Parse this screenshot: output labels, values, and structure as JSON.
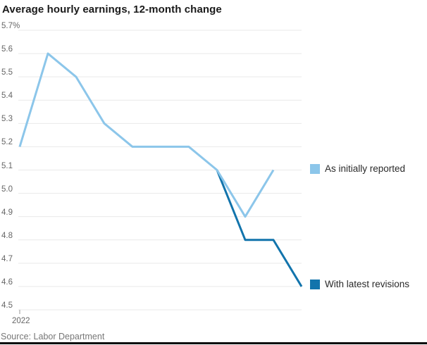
{
  "chart_data": {
    "type": "line",
    "title": "Average hourly earnings, 12-month change",
    "xlabel": "",
    "ylabel": "",
    "ylim": [
      4.5,
      5.7
    ],
    "grid": true,
    "grid_color": "#e9e9e9",
    "legend_position": "right",
    "x_tick_label": "2022",
    "x_note": "monthly points, Jan 2022 through Nov 2022; only year tick shown",
    "y_ticks": [
      {
        "label": "5.7%",
        "value": 5.7
      },
      {
        "label": "5.6",
        "value": 5.6
      },
      {
        "label": "5.5",
        "value": 5.5
      },
      {
        "label": "5.4",
        "value": 5.4
      },
      {
        "label": "5.3",
        "value": 5.3
      },
      {
        "label": "5.2",
        "value": 5.2
      },
      {
        "label": "5.1",
        "value": 5.1
      },
      {
        "label": "5.0",
        "value": 5.0
      },
      {
        "label": "4.9",
        "value": 4.9
      },
      {
        "label": "4.8",
        "value": 4.8
      },
      {
        "label": "4.7",
        "value": 4.7
      },
      {
        "label": "4.6",
        "value": 4.6
      },
      {
        "label": "4.5",
        "value": 4.5
      }
    ],
    "series": [
      {
        "name": "As initially reported",
        "color": "#8cc6ea",
        "start_index": 0,
        "values": [
          5.2,
          5.6,
          5.5,
          5.3,
          5.2,
          5.2,
          5.2,
          5.1,
          4.9,
          5.1
        ]
      },
      {
        "name": "With latest revisions",
        "color": "#1274ac",
        "start_index": 7,
        "values": [
          5.1,
          4.8,
          4.8,
          4.6
        ]
      }
    ]
  },
  "source": {
    "text": "Source: Labor Department"
  }
}
